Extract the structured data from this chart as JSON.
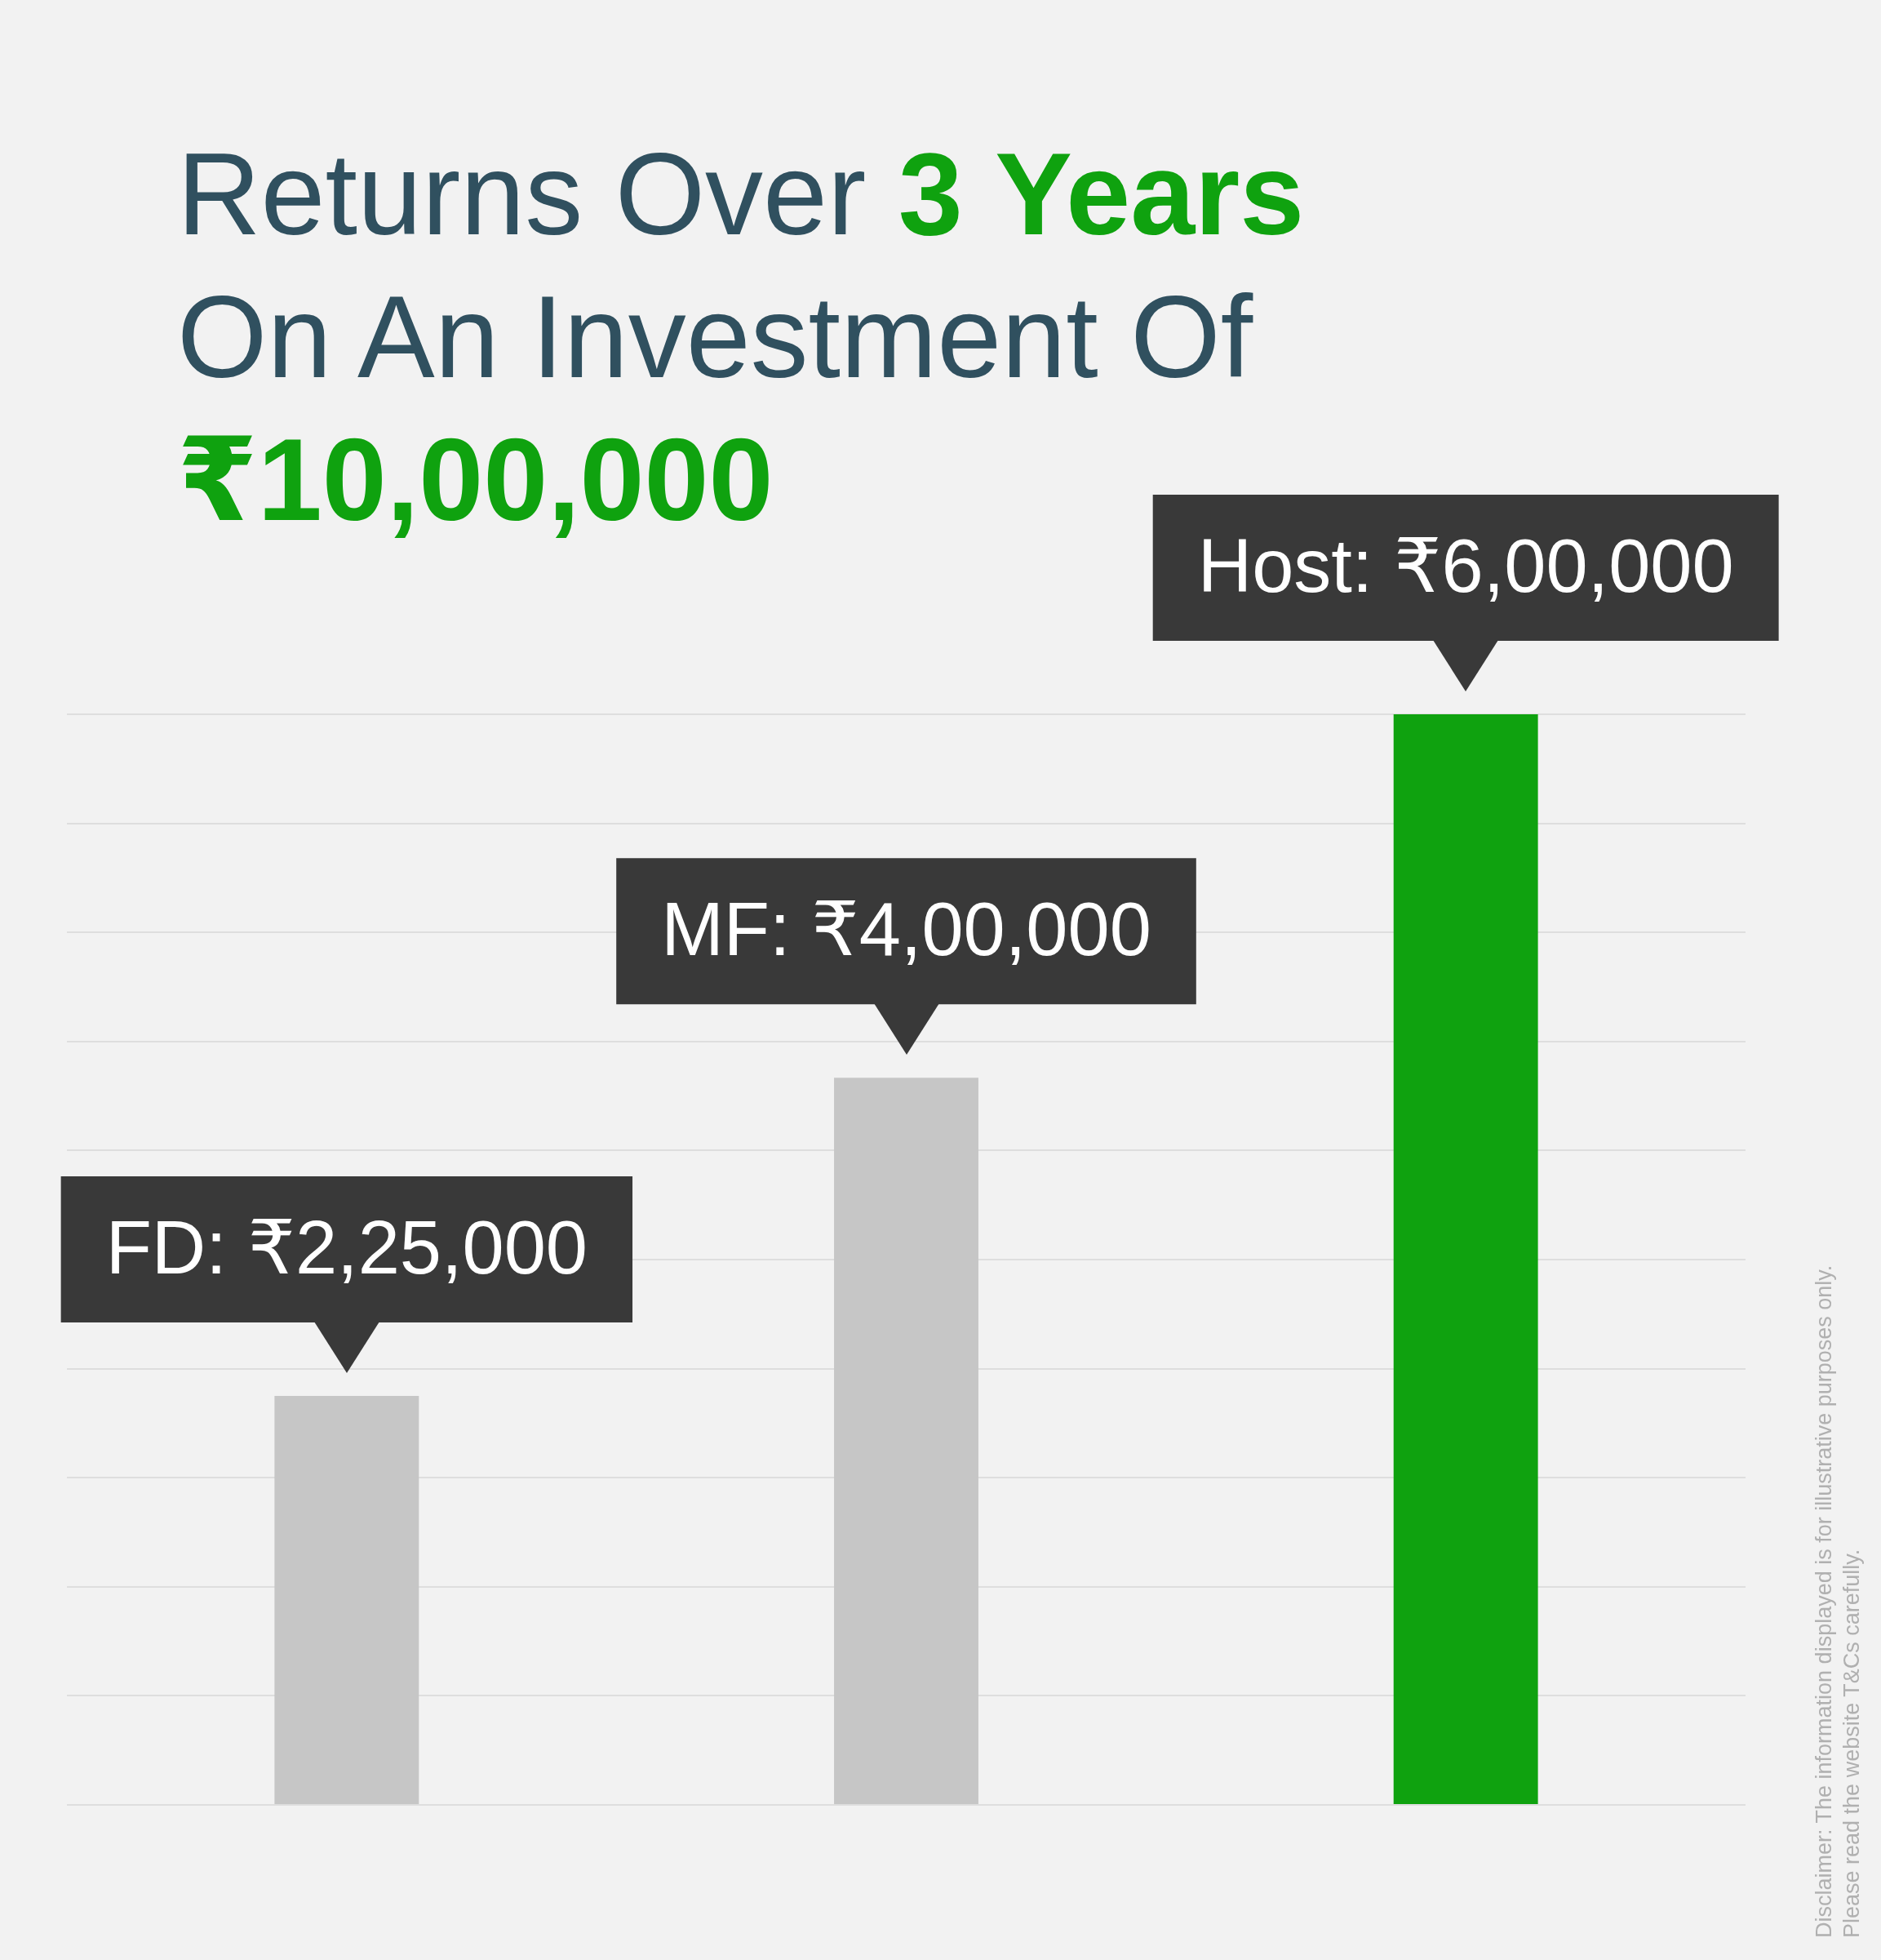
{
  "chart_data": {
    "type": "bar",
    "title": "Returns Over 3 Years On An Investment Of",
    "subtitle": "₹10,00,000",
    "categories": [
      null,
      null,
      null
    ],
    "values": [
      225000,
      400000,
      600000
    ],
    "colors": [
      "#c6c6c6",
      "#c6c6c6",
      "#0fa20f"
    ],
    "value_labels": [
      "FD: ₹2,25,000",
      "MF: ₹4,00,000",
      "Host: ₹6,00,000"
    ],
    "ylim": [
      0,
      600000
    ],
    "yticks": [
      {
        "value": 0,
        "label": null
      },
      {
        "value": 60000,
        "label": null
      },
      {
        "value": 120000,
        "label": null
      },
      {
        "value": 180000,
        "label": null
      },
      {
        "value": 240000,
        "label": null
      },
      {
        "value": 300000,
        "label": null
      },
      {
        "value": 360000,
        "label": null
      },
      {
        "value": 420000,
        "label": null
      },
      {
        "value": 480000,
        "label": null
      },
      {
        "value": 540000,
        "label": null
      },
      {
        "value": 600000,
        "label": null
      }
    ],
    "grid": "y",
    "tick_labels": false,
    "legend": false,
    "annotations": [
      "Disclaimer: The information displayed is for illustrative purposes only. Please read the website T&Cs carefully."
    ]
  }
}
